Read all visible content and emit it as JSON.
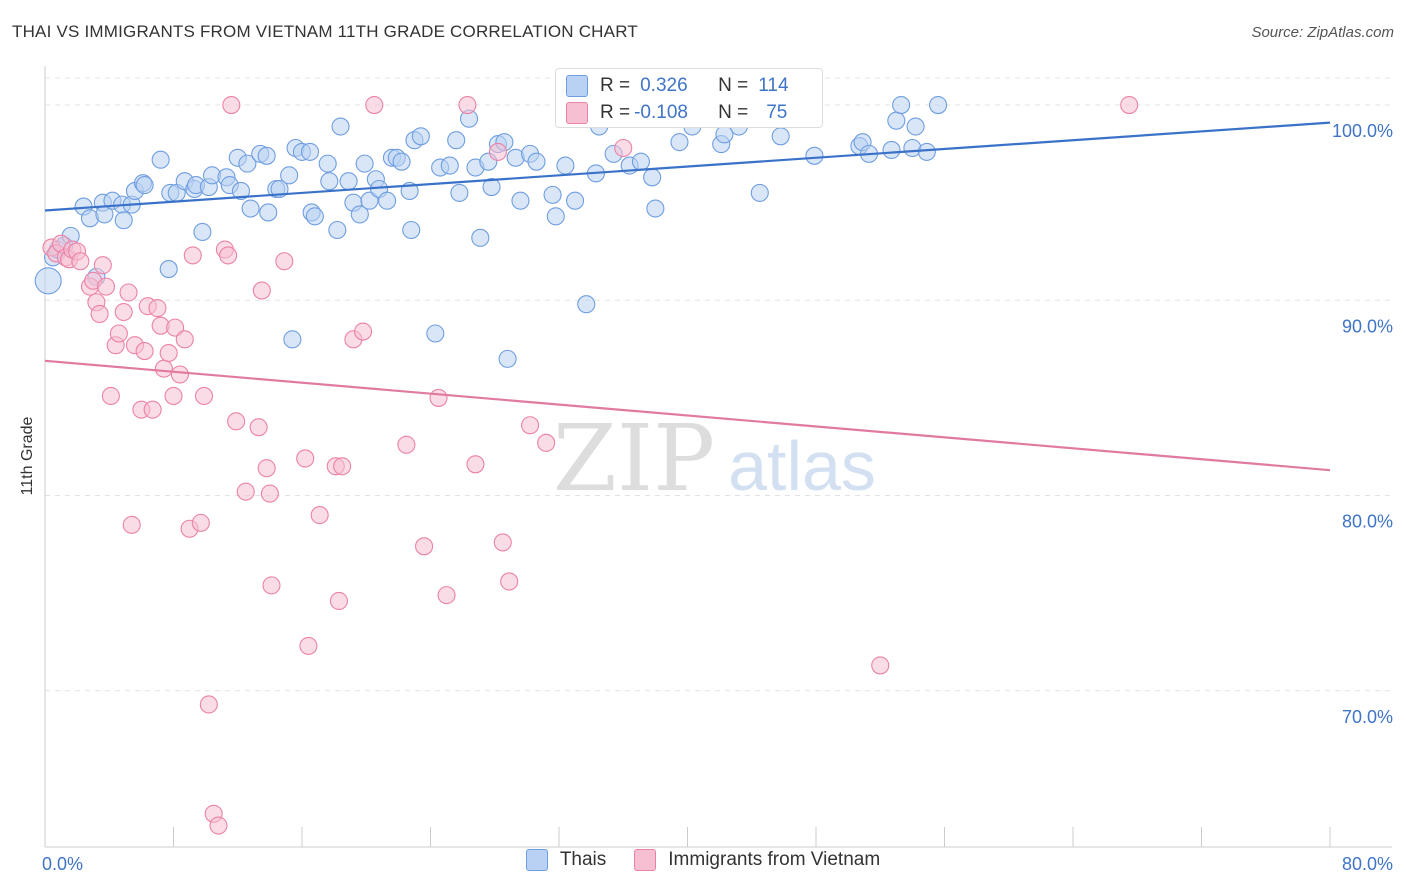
{
  "header": {
    "title": "THAI VS IMMIGRANTS FROM VIETNAM 11TH GRADE CORRELATION CHART",
    "source": "Source: ZipAtlas.com"
  },
  "stats": {
    "r_label": "R =",
    "n_label": "N =",
    "rows": [
      {
        "r": "0.326",
        "n": "114",
        "color": "#6f9ee0",
        "fill": "#b9d1f3"
      },
      {
        "r": "-0.108",
        "n": "75",
        "color": "#eb82a6",
        "fill": "#f6c0d2"
      }
    ]
  },
  "watermark": {
    "zip": "ZIP",
    "atlas": "atlas"
  },
  "chart_data": {
    "type": "scatter",
    "ylabel": "11th Grade",
    "xlim": [
      0,
      80
    ],
    "ylim": [
      62,
      102
    ],
    "x_tick_labels": [
      {
        "x": 0,
        "label": "0.0%"
      },
      {
        "x": 80,
        "label": "80.0%"
      }
    ],
    "x_minor_ticks": [
      0,
      8,
      16,
      24,
      32,
      40,
      48,
      56,
      64,
      72,
      80
    ],
    "y_ticks": [
      {
        "y": 70,
        "label": "70.0%"
      },
      {
        "y": 80,
        "label": "80.0%"
      },
      {
        "y": 90,
        "label": "90.0%"
      },
      {
        "y": 100,
        "label": "100.0%"
      }
    ],
    "grid": "horizontal dashed",
    "legend_position": "bottom-center",
    "series": [
      {
        "name": "Thais",
        "color": "#3a72c9",
        "marker_fill": "#b9d1f3",
        "marker_stroke": "#6f9ee0",
        "trend": {
          "x0": 0,
          "y0": 94.6,
          "x1": 80,
          "y1": 99.1
        },
        "points": [
          [
            0.2,
            91.0
          ],
          [
            0.5,
            92.2
          ],
          [
            0.8,
            92.6
          ],
          [
            1.2,
            92.8
          ],
          [
            1.6,
            93.3
          ],
          [
            2.4,
            94.8
          ],
          [
            2.8,
            94.2
          ],
          [
            3.2,
            91.2
          ],
          [
            3.6,
            95.0
          ],
          [
            3.7,
            94.4
          ],
          [
            4.2,
            95.1
          ],
          [
            4.8,
            94.9
          ],
          [
            4.9,
            94.1
          ],
          [
            5.4,
            94.9
          ],
          [
            5.6,
            95.6
          ],
          [
            6.1,
            96.0
          ],
          [
            6.2,
            95.9
          ],
          [
            7.2,
            97.2
          ],
          [
            7.7,
            91.6
          ],
          [
            7.8,
            95.5
          ],
          [
            8.2,
            95.5
          ],
          [
            8.7,
            96.1
          ],
          [
            9.3,
            95.7
          ],
          [
            9.4,
            95.9
          ],
          [
            9.8,
            93.5
          ],
          [
            10.2,
            95.8
          ],
          [
            10.4,
            96.4
          ],
          [
            11.3,
            96.3
          ],
          [
            11.5,
            95.9
          ],
          [
            12.0,
            97.3
          ],
          [
            12.2,
            95.6
          ],
          [
            12.6,
            97.0
          ],
          [
            12.8,
            94.7
          ],
          [
            13.4,
            97.5
          ],
          [
            13.8,
            97.4
          ],
          [
            13.9,
            94.5
          ],
          [
            14.4,
            95.7
          ],
          [
            14.6,
            95.7
          ],
          [
            15.2,
            96.4
          ],
          [
            15.4,
            88.0
          ],
          [
            15.6,
            97.8
          ],
          [
            16.0,
            97.6
          ],
          [
            16.5,
            97.6
          ],
          [
            16.6,
            94.5
          ],
          [
            16.8,
            94.3
          ],
          [
            17.6,
            97.0
          ],
          [
            17.7,
            96.1
          ],
          [
            18.2,
            93.6
          ],
          [
            18.4,
            98.9
          ],
          [
            18.9,
            96.1
          ],
          [
            19.2,
            95.0
          ],
          [
            19.6,
            94.4
          ],
          [
            19.9,
            97.0
          ],
          [
            20.2,
            95.1
          ],
          [
            20.6,
            96.2
          ],
          [
            20.8,
            95.7
          ],
          [
            21.3,
            95.1
          ],
          [
            21.6,
            97.3
          ],
          [
            21.9,
            97.3
          ],
          [
            22.2,
            97.1
          ],
          [
            22.7,
            95.6
          ],
          [
            22.8,
            93.6
          ],
          [
            23.0,
            98.2
          ],
          [
            23.4,
            98.4
          ],
          [
            24.3,
            88.3
          ],
          [
            24.6,
            96.8
          ],
          [
            25.2,
            96.9
          ],
          [
            25.6,
            98.2
          ],
          [
            25.8,
            95.5
          ],
          [
            26.4,
            99.3
          ],
          [
            26.8,
            96.8
          ],
          [
            27.1,
            93.2
          ],
          [
            27.6,
            97.1
          ],
          [
            27.8,
            95.8
          ],
          [
            28.2,
            98.0
          ],
          [
            28.6,
            98.1
          ],
          [
            28.8,
            87.0
          ],
          [
            29.3,
            97.3
          ],
          [
            29.6,
            95.1
          ],
          [
            30.2,
            97.5
          ],
          [
            30.6,
            97.1
          ],
          [
            31.6,
            95.4
          ],
          [
            31.8,
            94.3
          ],
          [
            32.4,
            96.9
          ],
          [
            33.0,
            95.1
          ],
          [
            33.7,
            89.8
          ],
          [
            34.3,
            96.5
          ],
          [
            34.5,
            98.9
          ],
          [
            35.4,
            97.5
          ],
          [
            36.4,
            96.9
          ],
          [
            37.1,
            97.1
          ],
          [
            37.8,
            96.3
          ],
          [
            38.0,
            94.7
          ],
          [
            38.7,
            100.0
          ],
          [
            39.5,
            98.1
          ],
          [
            40.3,
            98.9
          ],
          [
            40.5,
            99.4
          ],
          [
            41.3,
            100.0
          ],
          [
            42.1,
            98.0
          ],
          [
            42.3,
            98.5
          ],
          [
            43.2,
            98.9
          ],
          [
            44.5,
            95.5
          ],
          [
            45.8,
            98.4
          ],
          [
            47.0,
            100.0
          ],
          [
            47.9,
            97.4
          ],
          [
            50.7,
            97.9
          ],
          [
            50.9,
            98.1
          ],
          [
            51.3,
            97.5
          ],
          [
            52.7,
            97.7
          ],
          [
            53.0,
            99.2
          ],
          [
            53.3,
            100.0
          ],
          [
            54.0,
            97.8
          ],
          [
            54.2,
            98.9
          ],
          [
            54.9,
            97.6
          ],
          [
            55.6,
            100.0
          ]
        ]
      },
      {
        "name": "Immigrants from Vietnam",
        "color": "#e07aa0",
        "marker_fill": "#f6c0d2",
        "marker_stroke": "#eb82a6",
        "trend": {
          "x0": 0,
          "y0": 86.9,
          "x1": 80,
          "y1": 81.3
        },
        "points": [
          [
            0.4,
            92.7
          ],
          [
            0.7,
            92.4
          ],
          [
            1.0,
            92.9
          ],
          [
            1.3,
            92.2
          ],
          [
            1.5,
            92.1
          ],
          [
            1.7,
            92.6
          ],
          [
            2.0,
            92.5
          ],
          [
            2.2,
            92.0
          ],
          [
            2.8,
            90.7
          ],
          [
            3.0,
            91.0
          ],
          [
            3.2,
            89.9
          ],
          [
            3.4,
            89.3
          ],
          [
            3.6,
            91.8
          ],
          [
            3.8,
            90.7
          ],
          [
            4.1,
            85.1
          ],
          [
            4.4,
            87.7
          ],
          [
            4.6,
            88.3
          ],
          [
            4.9,
            89.4
          ],
          [
            5.2,
            90.4
          ],
          [
            5.4,
            78.5
          ],
          [
            5.6,
            87.7
          ],
          [
            6.0,
            84.4
          ],
          [
            6.2,
            87.4
          ],
          [
            6.4,
            89.7
          ],
          [
            6.7,
            84.4
          ],
          [
            7.0,
            89.6
          ],
          [
            7.2,
            88.7
          ],
          [
            7.4,
            86.5
          ],
          [
            7.7,
            87.3
          ],
          [
            8.0,
            85.1
          ],
          [
            8.1,
            88.6
          ],
          [
            8.4,
            86.2
          ],
          [
            8.7,
            88.0
          ],
          [
            9.0,
            78.3
          ],
          [
            9.2,
            92.3
          ],
          [
            9.7,
            78.6
          ],
          [
            9.9,
            85.1
          ],
          [
            10.2,
            69.3
          ],
          [
            10.5,
            63.7
          ],
          [
            10.8,
            63.1
          ],
          [
            11.2,
            92.6
          ],
          [
            11.4,
            92.3
          ],
          [
            11.6,
            100.0
          ],
          [
            11.9,
            83.8
          ],
          [
            12.5,
            80.2
          ],
          [
            13.3,
            83.5
          ],
          [
            13.5,
            90.5
          ],
          [
            13.8,
            81.4
          ],
          [
            14.0,
            80.1
          ],
          [
            14.1,
            75.4
          ],
          [
            14.9,
            92.0
          ],
          [
            16.2,
            81.9
          ],
          [
            16.4,
            72.3
          ],
          [
            17.1,
            79.0
          ],
          [
            18.1,
            81.5
          ],
          [
            18.3,
            74.6
          ],
          [
            18.5,
            81.5
          ],
          [
            19.2,
            88.0
          ],
          [
            19.8,
            88.4
          ],
          [
            20.5,
            100.0
          ],
          [
            22.5,
            82.6
          ],
          [
            23.6,
            77.4
          ],
          [
            24.5,
            85.0
          ],
          [
            25.0,
            74.9
          ],
          [
            26.3,
            100.0
          ],
          [
            26.8,
            81.6
          ],
          [
            28.2,
            97.6
          ],
          [
            28.5,
            77.6
          ],
          [
            28.9,
            75.6
          ],
          [
            30.2,
            83.6
          ],
          [
            31.2,
            82.7
          ],
          [
            36.0,
            97.8
          ],
          [
            43.5,
            100.0
          ],
          [
            52.0,
            71.3
          ],
          [
            67.5,
            100.0
          ]
        ]
      }
    ]
  }
}
